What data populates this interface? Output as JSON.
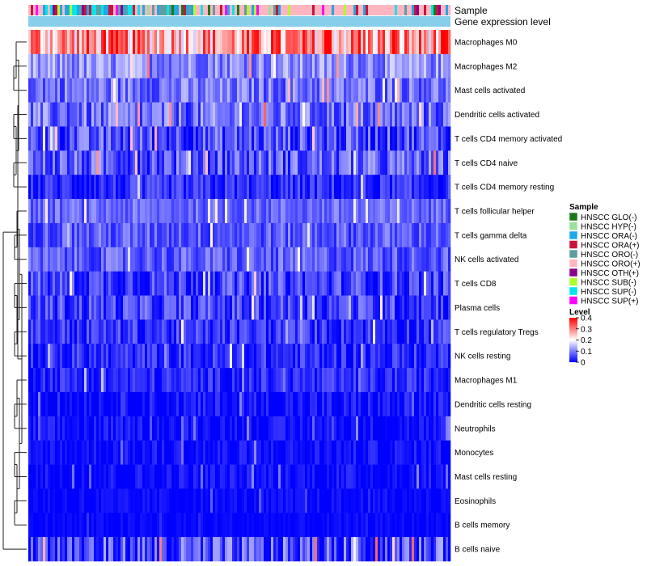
{
  "chart_data": {
    "type": "heatmap",
    "title": "",
    "annotations": {
      "sample_label": "Sample",
      "expression_label": "Gene expression level",
      "expression_color": "#87ceeb"
    },
    "rows": [
      {
        "label": "Macrophages M0",
        "mean": 0.28,
        "spread": 0.12
      },
      {
        "label": "Macrophages M2",
        "mean": 0.11,
        "spread": 0.06
      },
      {
        "label": "Mast cells activated",
        "mean": 0.09,
        "spread": 0.06
      },
      {
        "label": "Dendritic cells activated",
        "mean": 0.08,
        "spread": 0.07
      },
      {
        "label": "T cells CD4 memory activated",
        "mean": 0.06,
        "spread": 0.07
      },
      {
        "label": "T cells CD4 naive",
        "mean": 0.07,
        "spread": 0.07
      },
      {
        "label": "T cells CD4 memory resting",
        "mean": 0.03,
        "spread": 0.05
      },
      {
        "label": "T cells follicular helper",
        "mean": 0.08,
        "spread": 0.04
      },
      {
        "label": "T cells gamma delta",
        "mean": 0.07,
        "spread": 0.05
      },
      {
        "label": "NK cells activated",
        "mean": 0.07,
        "spread": 0.05
      },
      {
        "label": "T cells CD8",
        "mean": 0.05,
        "spread": 0.06
      },
      {
        "label": "Plasma cells",
        "mean": 0.05,
        "spread": 0.06
      },
      {
        "label": "T cells regulatory  Tregs",
        "mean": 0.04,
        "spread": 0.05
      },
      {
        "label": "NK cells resting",
        "mean": 0.03,
        "spread": 0.05
      },
      {
        "label": "Macrophages M1",
        "mean": 0.03,
        "spread": 0.04
      },
      {
        "label": "Dendritic cells resting",
        "mean": 0.01,
        "spread": 0.04
      },
      {
        "label": "Neutrophils",
        "mean": 0.01,
        "spread": 0.03
      },
      {
        "label": "Monocytes",
        "mean": 0.01,
        "spread": 0.03
      },
      {
        "label": "Mast cells resting",
        "mean": 0.01,
        "spread": 0.03
      },
      {
        "label": "Eosinophils",
        "mean": 0.005,
        "spread": 0.02
      },
      {
        "label": "B cells memory",
        "mean": 0.003,
        "spread": 0.015
      },
      {
        "label": "B cells naive",
        "mean": 0.05,
        "spread": 0.09
      }
    ],
    "n_samples": 174,
    "sample_legend": {
      "title": "Sample",
      "items": [
        {
          "label": "HNSCC GLO(-)",
          "color": "#1a7a1a"
        },
        {
          "label": "HNSCC HYP(-)",
          "color": "#9be09b"
        },
        {
          "label": "HNSCC ORA(-)",
          "color": "#1fa8e8"
        },
        {
          "label": "HNSCC ORA(+)",
          "color": "#c8143c"
        },
        {
          "label": "HNSCC ORO(-)",
          "color": "#5f9ea0"
        },
        {
          "label": "HNSCC ORO(+)",
          "color": "#ffb6c1"
        },
        {
          "label": "HNSCC OTH(+)",
          "color": "#8b008b"
        },
        {
          "label": "HNSCC SUB(-)",
          "color": "#adff2f"
        },
        {
          "label": "HNSCC SUP(-)",
          "color": "#00e5ee"
        },
        {
          "label": "HNSCC SUP(+)",
          "color": "#ff00ff"
        }
      ]
    },
    "level_legend": {
      "title": "Level",
      "ticks": [
        "0.4",
        "0.3",
        "0.2",
        "0.1",
        "0"
      ],
      "range": [
        0,
        0.4
      ],
      "colors": [
        "#0000ff",
        "#ffffff",
        "#ff0000"
      ]
    }
  }
}
